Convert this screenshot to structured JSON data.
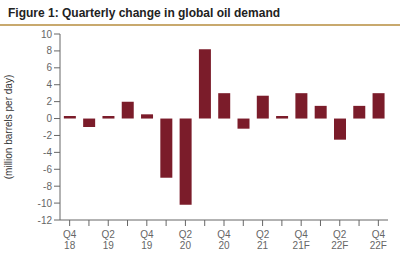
{
  "chart_data": {
    "type": "bar",
    "title": "Figure 1: Quarterly change in global oil demand",
    "ylabel": "(million barrels per day)",
    "categories": [
      "Q4\n18",
      null,
      "Q2\n19",
      null,
      "Q4\n19",
      null,
      "Q2\n20",
      null,
      "Q4\n20",
      null,
      "Q2\n21",
      null,
      "Q4\n21F",
      null,
      "Q2\n22F",
      null,
      "Q4\n22F"
    ],
    "values": [
      0.3,
      -1.0,
      0.3,
      2.0,
      0.5,
      -7.0,
      -10.2,
      8.2,
      3.0,
      -1.2,
      2.7,
      0.3,
      3.0,
      1.5,
      -2.5,
      1.5,
      3.0
    ],
    "color": "#7B1C2A",
    "ylim": [
      -12,
      10
    ],
    "yticks": [
      -12,
      -10,
      -8,
      -6,
      -4,
      -2,
      0,
      2,
      4,
      6,
      8,
      10
    ],
    "grid": false
  }
}
